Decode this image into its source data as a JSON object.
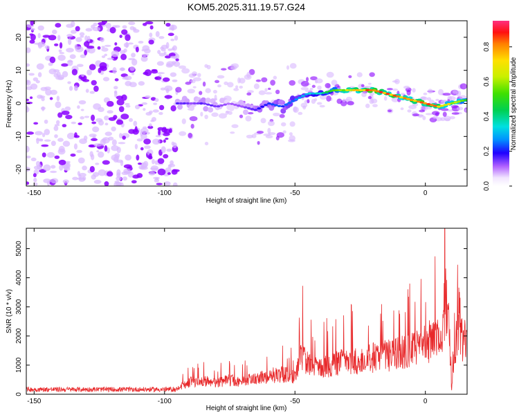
{
  "title": "KOM5.2025.311.19.57.G24",
  "colors": {
    "snr_line": "#e8282a",
    "axis": "#000000",
    "purple": "#8a00ff",
    "light_purple": "#d9b8ff"
  },
  "chart_data": [
    {
      "type": "heatmap",
      "title": "KOM5.2025.311.19.57.G24",
      "xlabel": "Height of straight line (km)",
      "ylabel": "Frequency (Hz)",
      "xlim": [
        -153,
        16
      ],
      "ylim": [
        -25,
        25
      ],
      "xticks": [
        -150,
        -100,
        -50,
        0
      ],
      "yticks": [
        20,
        10,
        0,
        -10,
        -20
      ],
      "grid": false,
      "colorbar": {
        "label": "Normalized spectral amplitude",
        "range": [
          0,
          0.95
        ],
        "ticks": [
          0.0,
          0.2,
          0.4,
          0.6,
          0.8
        ]
      },
      "ridge": {
        "x": [
          -95,
          -90,
          -85,
          -80,
          -75,
          -70,
          -65,
          -60,
          -55,
          -50,
          -45,
          -40,
          -35,
          -30,
          -25,
          -20,
          -15,
          -10,
          -5,
          0,
          5,
          10,
          15
        ],
        "frequency": [
          0,
          0,
          0,
          -1,
          0,
          -1,
          -2,
          0,
          -1,
          1,
          3,
          3,
          4,
          4,
          4,
          4,
          3,
          2,
          1,
          0,
          -1,
          0,
          1
        ],
        "amplitude": [
          0.18,
          0.15,
          0.18,
          0.15,
          0.12,
          0.14,
          0.2,
          0.22,
          0.25,
          0.3,
          0.35,
          0.4,
          0.55,
          0.7,
          0.85,
          0.92,
          0.9,
          0.85,
          0.88,
          0.9,
          0.85,
          0.7,
          0.6
        ]
      }
    },
    {
      "type": "line",
      "xlabel": "Height of straight line (km)",
      "ylabel": "SNR (10 * v/v)",
      "xlim": [
        -153,
        16
      ],
      "ylim": [
        0,
        5700
      ],
      "xticks": [
        -150,
        -100,
        -50,
        0
      ],
      "yticks": [
        0,
        1000,
        2000,
        3000,
        4000,
        5000
      ],
      "grid": false,
      "series": [
        {
          "x": [
            -153,
            -140,
            -130,
            -120,
            -110,
            -100,
            -95,
            -90,
            -85,
            -80,
            -75,
            -70,
            -65,
            -60,
            -55,
            -50,
            -47,
            -45,
            -40,
            -35,
            -30,
            -25,
            -20,
            -15,
            -10,
            -5,
            0,
            3,
            6,
            8,
            9,
            10,
            11,
            12,
            13,
            14,
            16
          ],
          "values": [
            180,
            170,
            160,
            150,
            160,
            170,
            300,
            600,
            650,
            550,
            700,
            600,
            800,
            900,
            1000,
            800,
            2000,
            1400,
            1300,
            1500,
            1700,
            1600,
            1800,
            1900,
            2000,
            2150,
            2400,
            2700,
            3200,
            4700,
            3500,
            200,
            1500,
            2800,
            3900,
            2700,
            2500
          ]
        }
      ]
    }
  ]
}
